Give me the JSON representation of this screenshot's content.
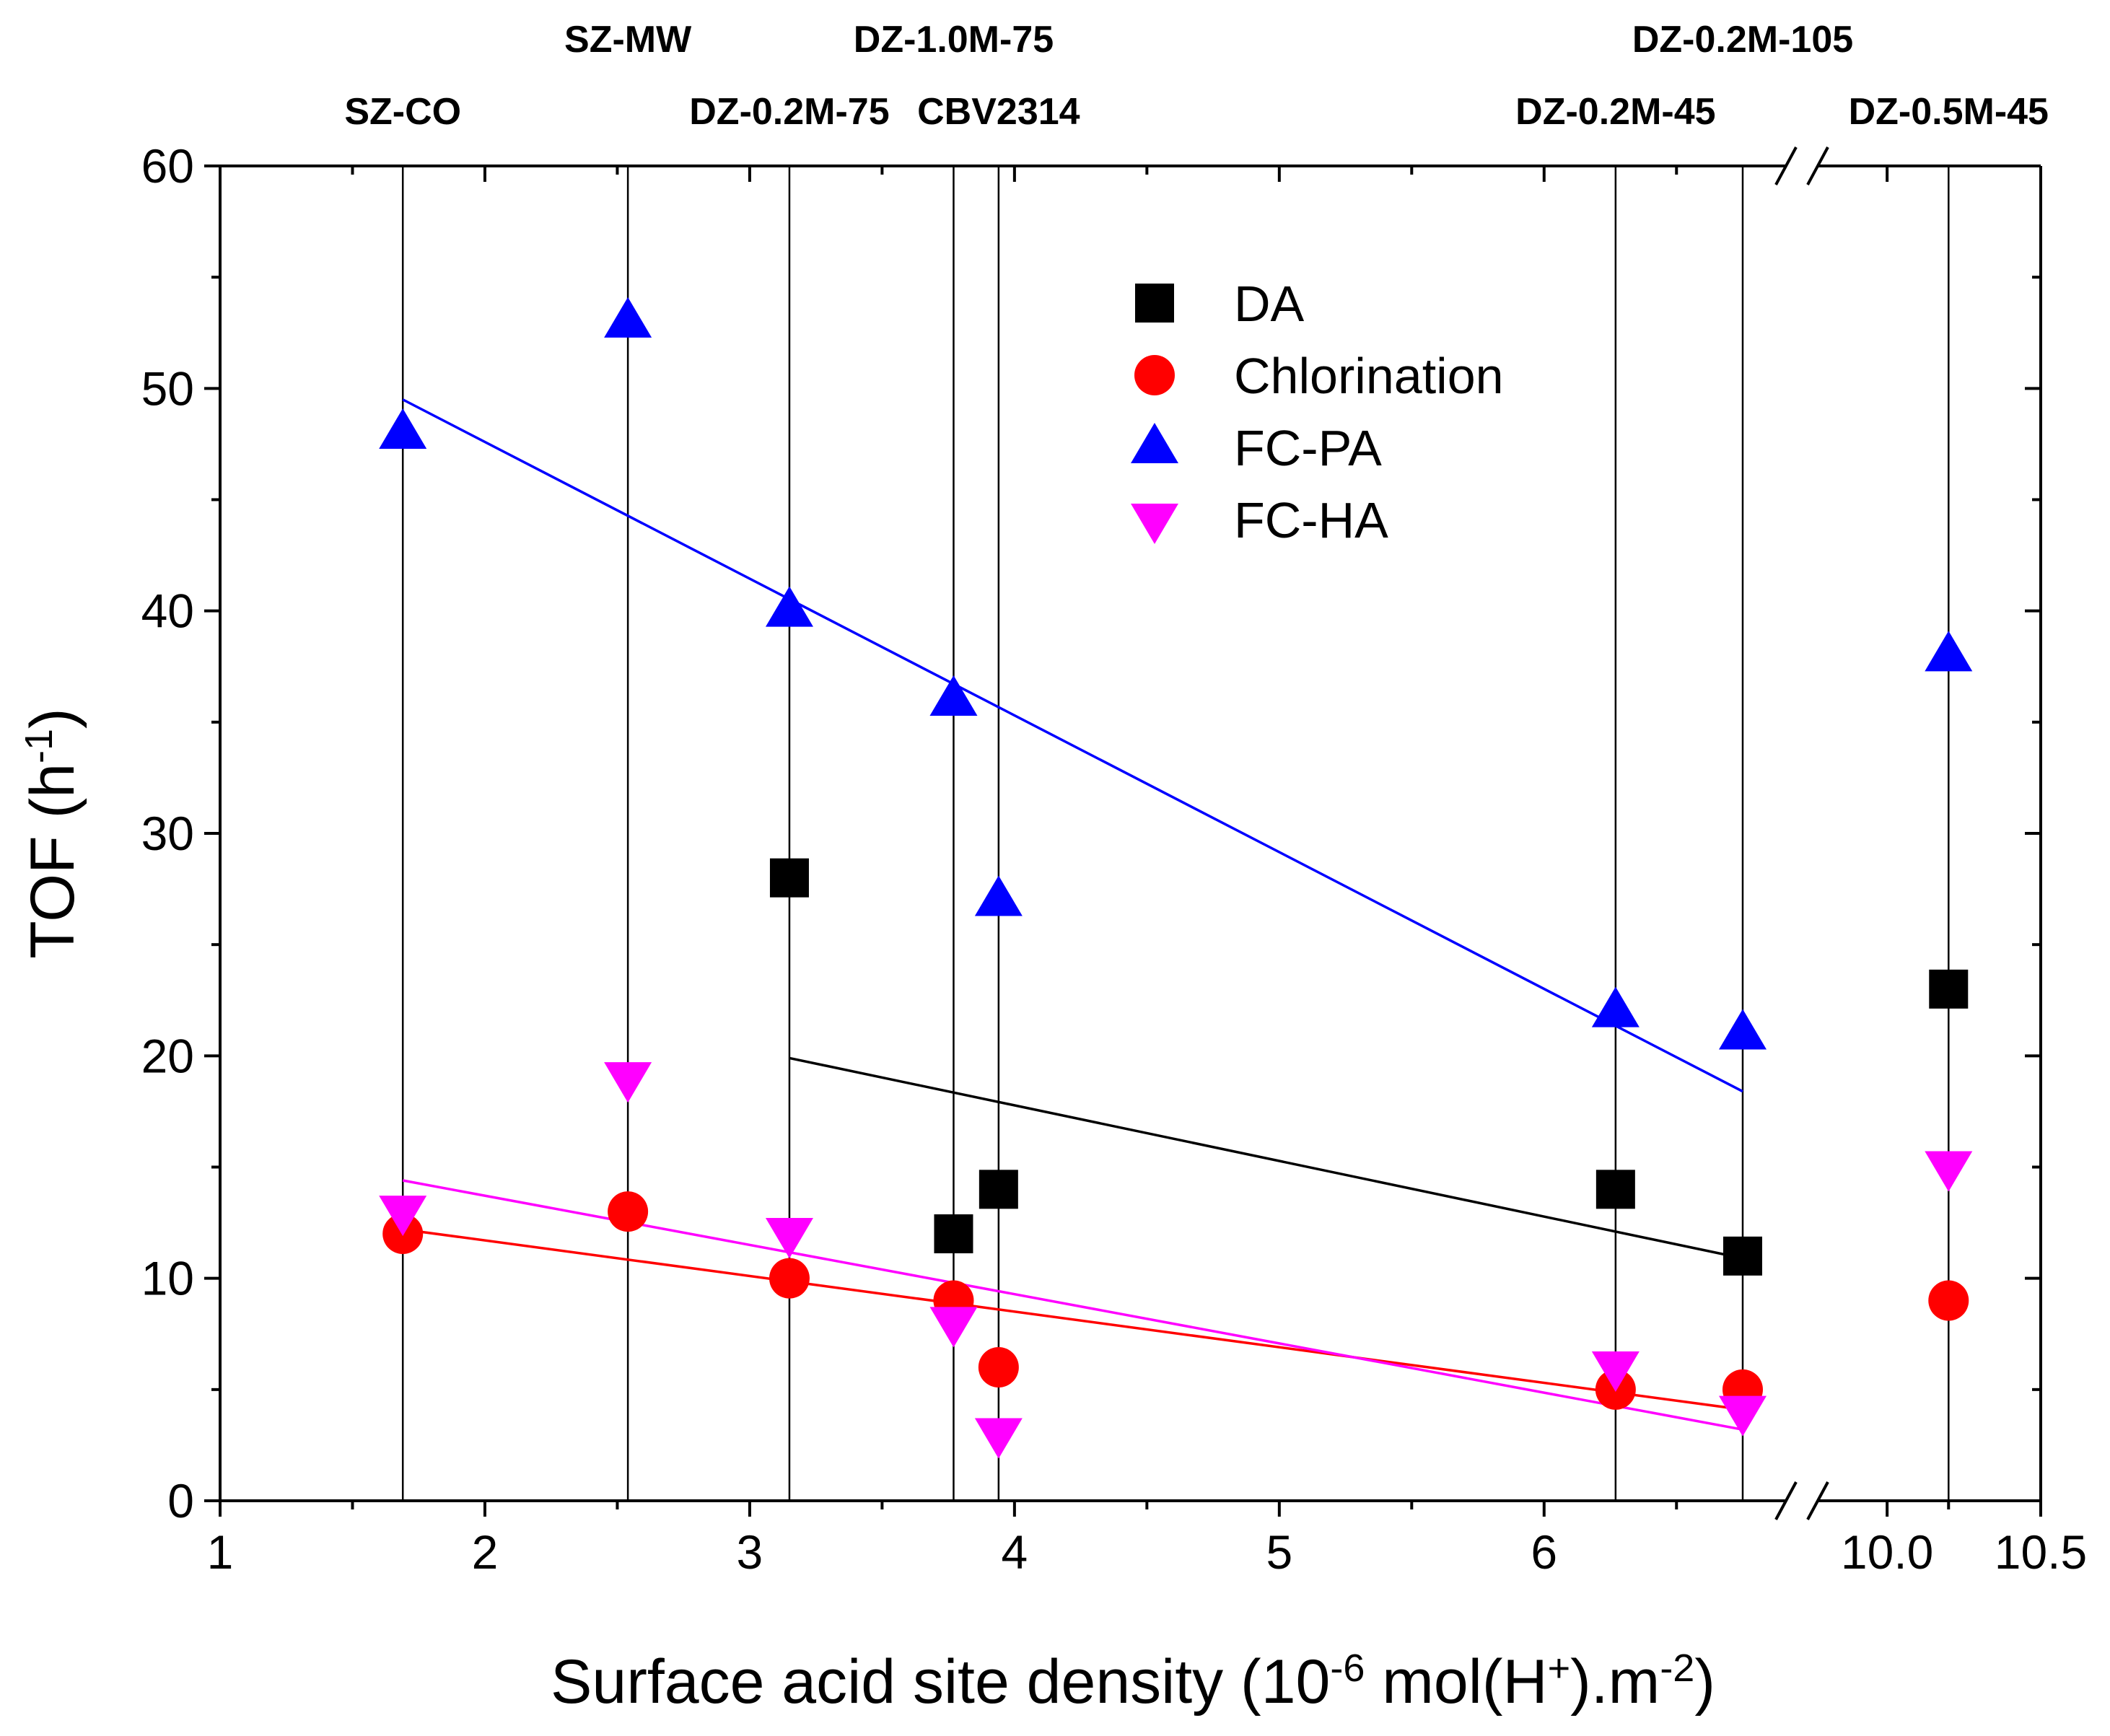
{
  "chart_data": {
    "type": "scatter",
    "xlabel": {
      "main": "Surface acid site density (10",
      "sup1": "-6",
      "mid": " mol(H",
      "sup2": "+",
      "end": ").m",
      "sup3": "-2",
      "close": ")"
    },
    "ylabel": {
      "main": "TOF (h",
      "sup": "-1",
      "close": ")"
    },
    "ylim": [
      0,
      60
    ],
    "yticks": [
      "0",
      "10",
      "20",
      "30",
      "40",
      "50",
      "60"
    ],
    "xlim_segment1": [
      1,
      6.75
    ],
    "xlim_segment2": [
      9.8,
      10.5
    ],
    "xticks": [
      {
        "value": 1,
        "segment": 1,
        "label": "1"
      },
      {
        "value": 2,
        "segment": 1,
        "label": "2"
      },
      {
        "value": 3,
        "segment": 1,
        "label": "3"
      },
      {
        "value": 4,
        "segment": 1,
        "label": "4"
      },
      {
        "value": 5,
        "segment": 1,
        "label": "5"
      },
      {
        "value": 6,
        "segment": 1,
        "label": "6"
      },
      {
        "value": 10.0,
        "segment": 2,
        "label": "10.0"
      },
      {
        "value": 10.5,
        "segment": 2,
        "label": "10.5"
      }
    ],
    "samples": [
      {
        "name": "SZ-CO",
        "x": 1.69,
        "segment": 1
      },
      {
        "name": "SZ-MW",
        "x": 2.54,
        "segment": 1
      },
      {
        "name": "DZ-0.2M-75",
        "x": 3.15,
        "segment": 1
      },
      {
        "name": "DZ-1.0M-75",
        "x": 3.77,
        "segment": 1
      },
      {
        "name": "CBV2314",
        "x": 3.94,
        "segment": 1
      },
      {
        "name": "DZ-0.2M-45",
        "x": 6.27,
        "segment": 1
      },
      {
        "name": "DZ-0.2M-105",
        "x": 6.75,
        "segment": 1
      },
      {
        "name": "DZ-0.5M-45",
        "x": 10.2,
        "segment": 2
      }
    ],
    "series": [
      {
        "name": "DA",
        "marker": "square",
        "color": "#000000",
        "points": [
          {
            "x": 3.15,
            "segment": 1,
            "y": 28
          },
          {
            "x": 3.77,
            "segment": 1,
            "y": 12
          },
          {
            "x": 3.94,
            "segment": 1,
            "y": 14
          },
          {
            "x": 6.27,
            "segment": 1,
            "y": 14
          },
          {
            "x": 6.75,
            "segment": 1,
            "y": 11
          },
          {
            "x": 10.2,
            "segment": 2,
            "y": 23
          }
        ],
        "fit": {
          "x": [
            3.15,
            6.75
          ],
          "y": [
            19.9,
            10.9
          ]
        }
      },
      {
        "name": "Chlorination",
        "marker": "circle",
        "color": "#ff0000",
        "points": [
          {
            "x": 1.69,
            "segment": 1,
            "y": 12
          },
          {
            "x": 2.54,
            "segment": 1,
            "y": 13
          },
          {
            "x": 3.15,
            "segment": 1,
            "y": 10
          },
          {
            "x": 3.77,
            "segment": 1,
            "y": 9
          },
          {
            "x": 3.94,
            "segment": 1,
            "y": 6
          },
          {
            "x": 6.27,
            "segment": 1,
            "y": 5
          },
          {
            "x": 6.75,
            "segment": 1,
            "y": 5
          },
          {
            "x": 10.2,
            "segment": 2,
            "y": 9
          }
        ],
        "fit": {
          "x": [
            1.69,
            6.75
          ],
          "y": [
            12.2,
            4.1
          ]
        }
      },
      {
        "name": "FC-PA",
        "marker": "triangle-up",
        "color": "#0000ff",
        "points": [
          {
            "x": 1.69,
            "segment": 1,
            "y": 48
          },
          {
            "x": 2.54,
            "segment": 1,
            "y": 53
          },
          {
            "x": 3.15,
            "segment": 1,
            "y": 40
          },
          {
            "x": 3.77,
            "segment": 1,
            "y": 36
          },
          {
            "x": 3.94,
            "segment": 1,
            "y": 27
          },
          {
            "x": 6.27,
            "segment": 1,
            "y": 22
          },
          {
            "x": 6.75,
            "segment": 1,
            "y": 21
          },
          {
            "x": 10.2,
            "segment": 2,
            "y": 38
          }
        ],
        "fit": {
          "x": [
            1.69,
            6.75
          ],
          "y": [
            49.5,
            18.4
          ]
        }
      },
      {
        "name": "FC-HA",
        "marker": "triangle-down",
        "color": "#ff00ff",
        "points": [
          {
            "x": 1.69,
            "segment": 1,
            "y": 13
          },
          {
            "x": 2.54,
            "segment": 1,
            "y": 19
          },
          {
            "x": 3.15,
            "segment": 1,
            "y": 12
          },
          {
            "x": 3.77,
            "segment": 1,
            "y": 8
          },
          {
            "x": 3.94,
            "segment": 1,
            "y": 3
          },
          {
            "x": 6.27,
            "segment": 1,
            "y": 6
          },
          {
            "x": 6.75,
            "segment": 1,
            "y": 4
          },
          {
            "x": 10.2,
            "segment": 2,
            "y": 15
          }
        ],
        "fit": {
          "x": [
            1.69,
            6.75
          ],
          "y": [
            14.4,
            3.2
          ]
        }
      }
    ],
    "legend_position": "top-right"
  }
}
